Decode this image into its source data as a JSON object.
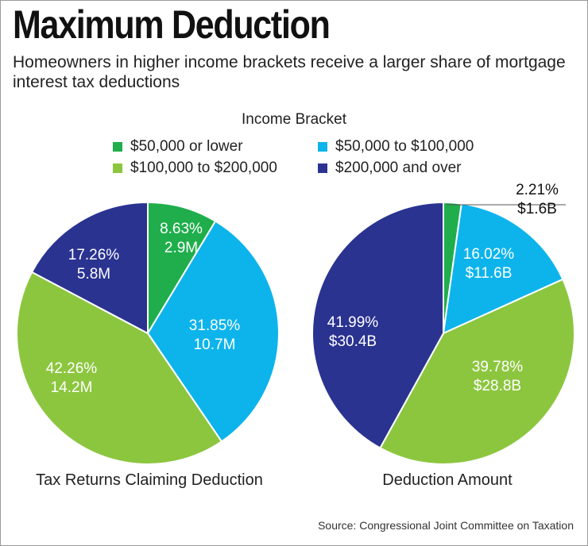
{
  "header": {
    "title": "Maximum Deduction",
    "subtitle": "Homeowners in higher income brackets receive a larger share of mortgage interest tax deductions"
  },
  "legend": {
    "heading": "Income Bracket",
    "items": [
      {
        "label": "$50,000 or lower",
        "color": "#1fae4b"
      },
      {
        "label": "$50,000 to $100,000",
        "color": "#0db4ec"
      },
      {
        "label": "$100,000 to $200,000",
        "color": "#8cc63f"
      },
      {
        "label": "$200,000 and over",
        "color": "#2a3390"
      }
    ]
  },
  "chart_data": [
    {
      "type": "pie",
      "title": "Tax Returns Claiming Deduction",
      "categories": [
        "$50,000 or lower",
        "$50,000 to $100,000",
        "$100,000 to $200,000",
        "$200,000 and over"
      ],
      "values": [
        8.63,
        31.85,
        42.26,
        17.26
      ],
      "value_labels": [
        "8.63%",
        "31.85%",
        "42.26%",
        "17.26%"
      ],
      "amounts": [
        "2.9M",
        "10.7M",
        "14.2M",
        "5.8M"
      ],
      "colors": [
        "#1fae4b",
        "#0db4ec",
        "#8cc63f",
        "#2a3390"
      ]
    },
    {
      "type": "pie",
      "title": "Deduction Amount",
      "categories": [
        "$50,000 or lower",
        "$50,000 to $100,000",
        "$100,000 to $200,000",
        "$200,000 and over"
      ],
      "values": [
        2.21,
        16.02,
        39.78,
        41.99
      ],
      "value_labels": [
        "2.21%",
        "16.02%",
        "39.78%",
        "41.99%"
      ],
      "amounts": [
        "$1.6B",
        "$11.6B",
        "$28.8B",
        "$30.4B"
      ],
      "colors": [
        "#1fae4b",
        "#0db4ec",
        "#8cc63f",
        "#2a3390"
      ]
    }
  ],
  "footer": {
    "source": "Source: Congressional Joint Committee on Taxation"
  }
}
